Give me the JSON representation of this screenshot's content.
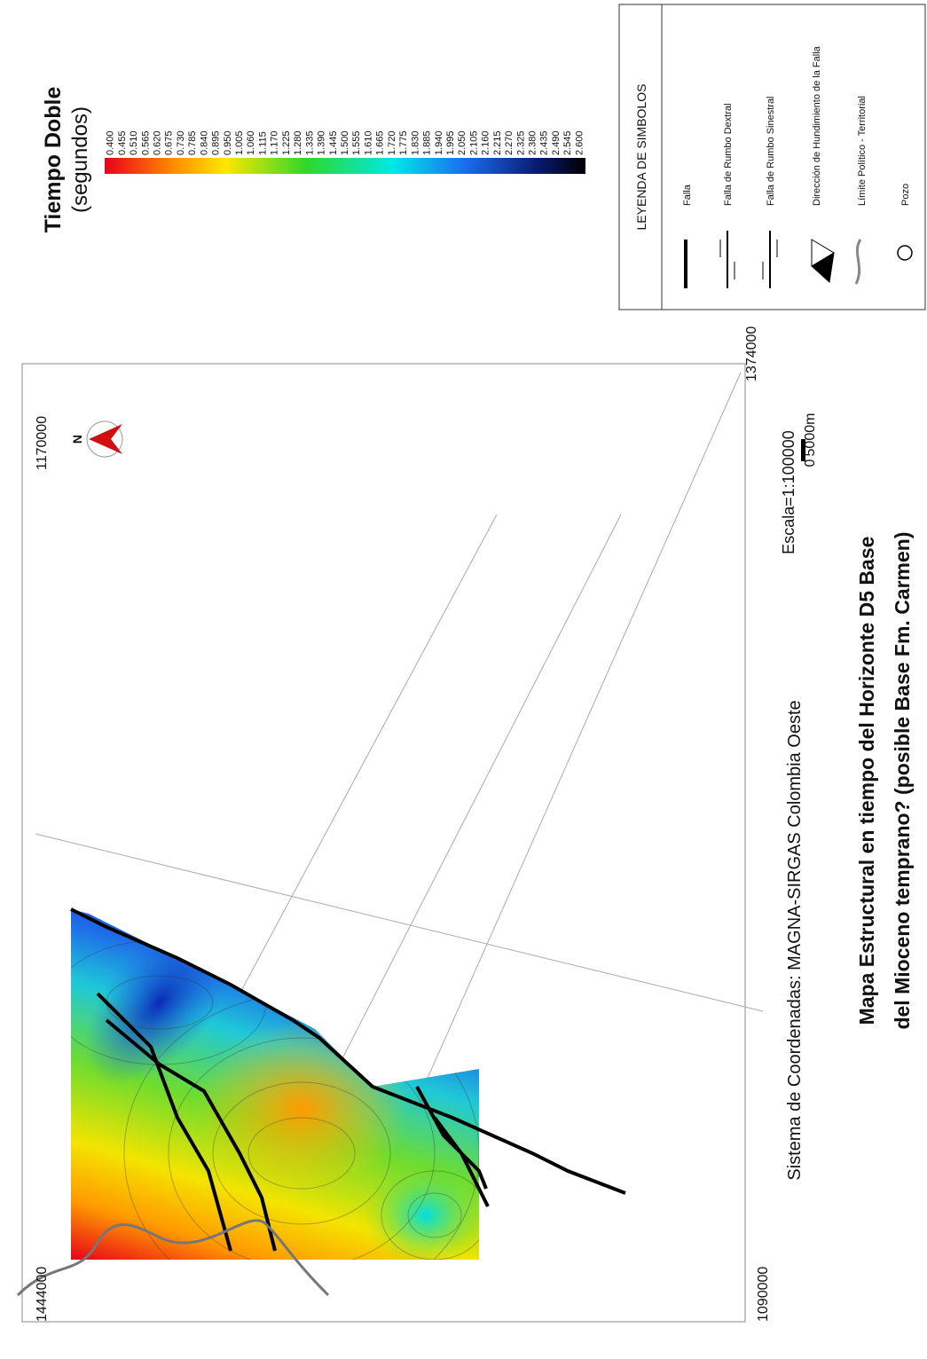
{
  "map": {
    "title_lines": [
      "Mapa Estructural en tiempo del Horizonte D5 Base",
      "del Mioceno temprano? (posible Base Fm. Carmen)"
    ],
    "coordinate_system": "Sistema de Coordenadas: MAGNA-SIRGAS Colombia Oeste",
    "scale": "Escala=1:100000",
    "scale_bar": {
      "start": "0",
      "end": "5000m"
    },
    "corner_labels": {
      "bottom_left_y": "1444000",
      "bottom_right_x": "1090000",
      "top_left_x": "1170000",
      "top_right_y": "1374000"
    },
    "north": "N"
  },
  "colorbar": {
    "title": "Tiempo Doble",
    "unit": "(segundos)",
    "labels": [
      "0.400",
      "0.455",
      "0.510",
      "0.565",
      "0.620",
      "0.675",
      "0.730",
      "0.785",
      "0.840",
      "0.895",
      "0.950",
      "1.005",
      "1.060",
      "1.115",
      "1.170",
      "1.225",
      "1.280",
      "1.335",
      "1.390",
      "1.445",
      "1.500",
      "1.555",
      "1.610",
      "1.665",
      "1.720",
      "1.775",
      "1.830",
      "1.885",
      "1.940",
      "1.995",
      "2.050",
      "2.105",
      "2.160",
      "2.215",
      "2.270",
      "2.325",
      "2.380",
      "2.435",
      "2.490",
      "2.545",
      "2.600"
    ]
  },
  "legend": {
    "title": "LEYENDA DE SIMBOLOS",
    "items": [
      "Falla",
      "Falla de Rumbo Dextral",
      "Falla de Rumbo Sinestral",
      "Dirección de Hundimiento de la Falla",
      "Límite Político - Territorial",
      "Pozo"
    ]
  }
}
